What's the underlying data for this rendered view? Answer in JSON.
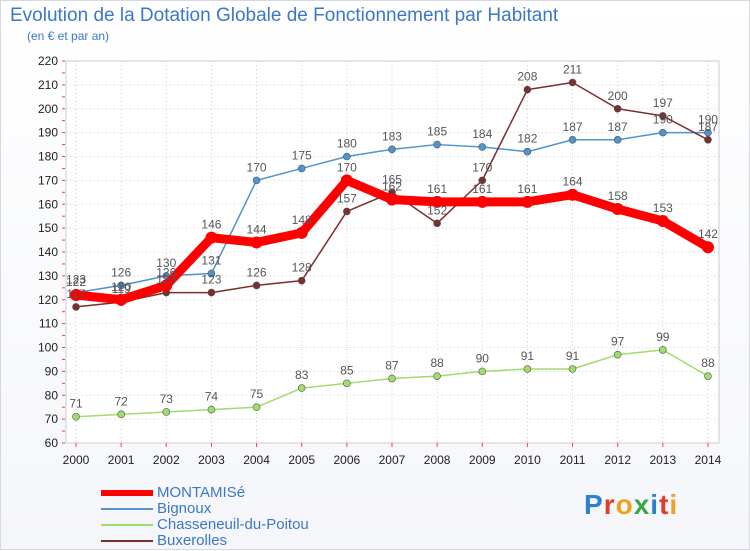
{
  "title": "Evolution de la Dotation Globale de Fonctionnement par Habitant",
  "subtitle": "(en € et par an)",
  "logo_text": "Proxiti",
  "chart_data": {
    "type": "line",
    "title": "Evolution de la Dotation Globale de Fonctionnement par Habitant",
    "subtitle": "(en € et par an)",
    "xlabel": "",
    "ylabel": "",
    "ylim": [
      60,
      220
    ],
    "yticks": [
      60,
      70,
      80,
      90,
      100,
      110,
      120,
      130,
      140,
      150,
      160,
      170,
      180,
      190,
      200,
      210,
      220
    ],
    "categories": [
      "2000",
      "2001",
      "2002",
      "2003",
      "2004",
      "2005",
      "2006",
      "2007",
      "2008",
      "2009",
      "2010",
      "2011",
      "2012",
      "2013",
      "2014"
    ],
    "grid": true,
    "legend_position": "bottom-left",
    "series": [
      {
        "name": "MONTAMISé",
        "color": "#ff0000",
        "values": [
          122,
          120,
          126,
          146,
          144,
          148,
          170,
          162,
          161,
          161,
          161,
          164,
          158,
          153,
          142
        ]
      },
      {
        "name": "Bignoux",
        "color": "#4f93cf",
        "values": [
          123,
          126,
          130,
          131,
          170,
          175,
          180,
          183,
          185,
          184,
          182,
          187,
          187,
          190,
          190
        ]
      },
      {
        "name": "Chasseneuil-du-Poitou",
        "color": "#9ddd6a",
        "values": [
          71,
          72,
          73,
          74,
          75,
          83,
          85,
          87,
          88,
          90,
          91,
          91,
          97,
          99,
          88
        ]
      },
      {
        "name": "Buxerolles",
        "color": "#7b2e2e",
        "values": [
          117,
          119,
          123,
          123,
          126,
          128,
          157,
          165,
          152,
          170,
          208,
          211,
          200,
          197,
          187
        ]
      }
    ]
  }
}
